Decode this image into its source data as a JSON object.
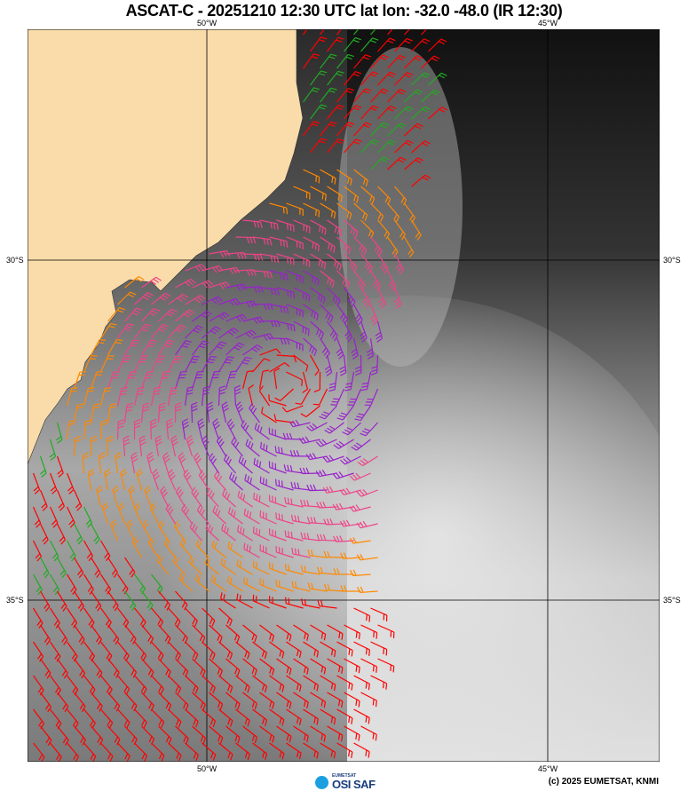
{
  "title": "ASCAT-C - 20251210 12:30 UTC lat lon: -32.0 -48.0 (IR 12:30)",
  "grid_labels": {
    "lon_top": [
      "50°W",
      "45°W"
    ],
    "lon_bottom": [
      "50°W",
      "45°W"
    ],
    "lat_left": [
      "30°S",
      "35°S"
    ],
    "lat_right": [
      "30°S",
      "35°S"
    ]
  },
  "credit": "(c) 2025 EUMETSAT, KNMI",
  "logo": {
    "small": "EUMETSAT",
    "big": "OSI SAF"
  },
  "colors": {
    "land": "#f9dcaa",
    "barb_speed_scale": [
      "#0033ff",
      "#00ccff",
      "#ffdd00",
      "#ff8800",
      "#22aa22",
      "#ff0000",
      "#ee4488",
      "#9922cc",
      "#000000"
    ]
  }
}
